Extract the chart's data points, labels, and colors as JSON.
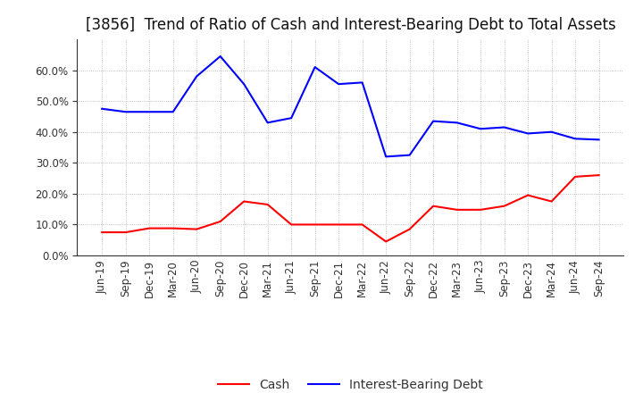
{
  "title": "[3856]  Trend of Ratio of Cash and Interest-Bearing Debt to Total Assets",
  "x_labels": [
    "Jun-19",
    "Sep-19",
    "Dec-19",
    "Mar-20",
    "Jun-20",
    "Sep-20",
    "Dec-20",
    "Mar-21",
    "Jun-21",
    "Sep-21",
    "Dec-21",
    "Mar-22",
    "Jun-22",
    "Sep-22",
    "Dec-22",
    "Mar-23",
    "Jun-23",
    "Sep-23",
    "Dec-23",
    "Mar-24",
    "Jun-24",
    "Sep-24"
  ],
  "cash": [
    0.075,
    0.075,
    0.088,
    0.088,
    0.085,
    0.11,
    0.175,
    0.165,
    0.1,
    0.1,
    0.1,
    0.1,
    0.045,
    0.085,
    0.16,
    0.148,
    0.148,
    0.16,
    0.195,
    0.175,
    0.255,
    0.26
  ],
  "interest_bearing_debt": [
    0.475,
    0.465,
    0.465,
    0.465,
    0.58,
    0.645,
    0.555,
    0.43,
    0.445,
    0.61,
    0.555,
    0.56,
    0.32,
    0.325,
    0.435,
    0.43,
    0.41,
    0.415,
    0.395,
    0.4,
    0.378,
    0.375
  ],
  "cash_color": "#FF0000",
  "debt_color": "#0000FF",
  "background_color": "#FFFFFF",
  "grid_color": "#AAAAAA",
  "ylim": [
    0.0,
    0.7
  ],
  "yticks": [
    0.0,
    0.1,
    0.2,
    0.3,
    0.4,
    0.5,
    0.6
  ],
  "legend_cash": "Cash",
  "legend_debt": "Interest-Bearing Debt",
  "title_fontsize": 12,
  "tick_fontsize": 8.5,
  "legend_fontsize": 10
}
